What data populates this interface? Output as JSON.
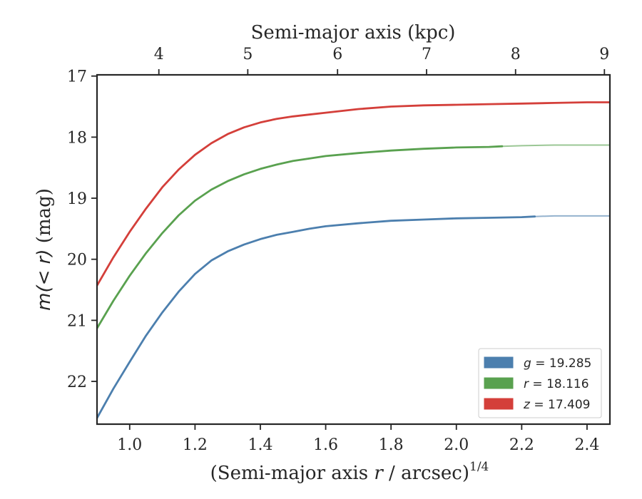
{
  "chart_data": {
    "type": "line",
    "title": "",
    "xlabel_prefix": "(Semi-major axis ",
    "xlabel_var": "r",
    "xlabel_suffix": " / arcsec)",
    "xlabel_sup": "1/4",
    "x2label": "Semi-major axis (kpc)",
    "ylabel_var": "m(< r)",
    "ylabel_suffix": " (mag)",
    "xlim": [
      0.9,
      2.47
    ],
    "ylim": [
      22.7,
      16.98
    ],
    "y_inverted": true,
    "xticks": [
      1.0,
      1.2,
      1.4,
      1.6,
      1.8,
      2.0,
      2.2,
      2.4
    ],
    "xtick_labels": [
      "1.0",
      "1.2",
      "1.4",
      "1.6",
      "1.8",
      "2.0",
      "2.2",
      "2.4"
    ],
    "yticks": [
      17,
      18,
      19,
      20,
      21,
      22
    ],
    "ytick_labels": [
      "17",
      "18",
      "19",
      "20",
      "21",
      "22"
    ],
    "x2ticks": [
      {
        "label": "4",
        "x": 1.0893
      },
      {
        "label": "5",
        "x": 1.3615
      },
      {
        "label": "6",
        "x": 1.6363
      },
      {
        "label": "7",
        "x": 1.9088
      },
      {
        "label": "8",
        "x": 2.1812
      },
      {
        "label": "9",
        "x": 2.4532
      }
    ],
    "grid": false,
    "legend_position": "lower-right",
    "series": [
      {
        "name": "g",
        "label_value": "19.285",
        "color": "#4c7fae",
        "x": [
          0.9,
          0.95,
          1.0,
          1.05,
          1.1,
          1.15,
          1.2,
          1.25,
          1.3,
          1.35,
          1.4,
          1.45,
          1.5,
          1.55,
          1.6,
          1.7,
          1.8,
          1.9,
          2.0,
          2.1,
          2.2,
          2.24
        ],
        "y": [
          22.6,
          22.12,
          21.68,
          21.25,
          20.87,
          20.53,
          20.24,
          20.02,
          19.87,
          19.76,
          19.67,
          19.6,
          19.55,
          19.5,
          19.46,
          19.41,
          19.37,
          19.35,
          19.33,
          19.32,
          19.31,
          19.3
        ],
        "extension_x": [
          2.24,
          2.3,
          2.4,
          2.47
        ],
        "extension_y": [
          19.3,
          19.29,
          19.29,
          19.29
        ]
      },
      {
        "name": "r",
        "label_value": "18.116",
        "color": "#59a14f",
        "x": [
          0.9,
          0.95,
          1.0,
          1.05,
          1.1,
          1.15,
          1.2,
          1.25,
          1.3,
          1.35,
          1.4,
          1.45,
          1.5,
          1.55,
          1.6,
          1.7,
          1.8,
          1.9,
          2.0,
          2.1,
          2.14
        ],
        "y": [
          21.13,
          20.68,
          20.27,
          19.9,
          19.57,
          19.28,
          19.04,
          18.86,
          18.72,
          18.61,
          18.52,
          18.45,
          18.39,
          18.35,
          18.31,
          18.26,
          18.22,
          18.19,
          18.17,
          18.16,
          18.15
        ],
        "extension_x": [
          2.14,
          2.2,
          2.3,
          2.4,
          2.47
        ],
        "extension_y": [
          18.15,
          18.14,
          18.13,
          18.13,
          18.13
        ]
      },
      {
        "name": "z",
        "label_value": "17.409",
        "color": "#d43f3a",
        "x": [
          0.9,
          0.95,
          1.0,
          1.05,
          1.1,
          1.15,
          1.2,
          1.25,
          1.3,
          1.35,
          1.4,
          1.45,
          1.5,
          1.55,
          1.6,
          1.7,
          1.8,
          1.9,
          2.0,
          2.1,
          2.2,
          2.3,
          2.4,
          2.47
        ],
        "y": [
          20.43,
          19.97,
          19.55,
          19.17,
          18.82,
          18.53,
          18.29,
          18.1,
          17.95,
          17.84,
          17.76,
          17.7,
          17.66,
          17.63,
          17.6,
          17.54,
          17.5,
          17.48,
          17.47,
          17.46,
          17.45,
          17.44,
          17.43,
          17.43
        ]
      }
    ]
  }
}
